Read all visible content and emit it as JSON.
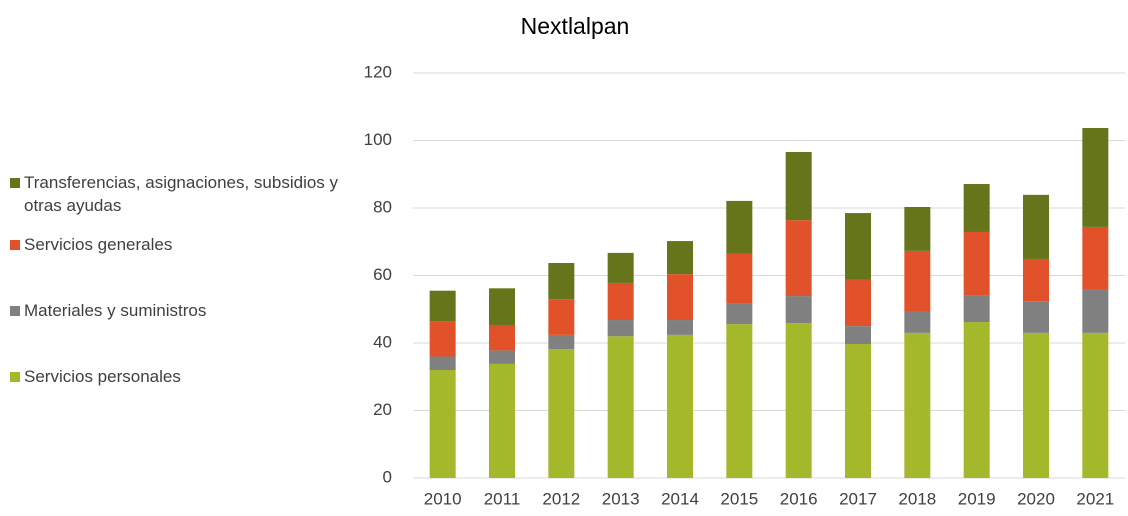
{
  "chart_data": {
    "type": "stacked_bar",
    "title": "Nextlalpan",
    "categories": [
      "2010",
      "2011",
      "2012",
      "2013",
      "2014",
      "2015",
      "2016",
      "2017",
      "2018",
      "2019",
      "2020",
      "2021"
    ],
    "series": [
      {
        "name": "Servicios personales",
        "color": "#a5b82b",
        "values": [
          32,
          33.8,
          38.2,
          42,
          42.4,
          45.6,
          45.9,
          39.7,
          43,
          46.2,
          43,
          43
        ]
      },
      {
        "name": "Materiales y suministros",
        "color": "#808080",
        "values": [
          4,
          4,
          4.2,
          4.8,
          4.4,
          6,
          8,
          5.3,
          6.2,
          8,
          9.4,
          13
        ]
      },
      {
        "name": "Servicios generales",
        "color": "#e2522a",
        "values": [
          10.5,
          7.4,
          10.6,
          11,
          13.6,
          14.8,
          22.5,
          13.7,
          18.1,
          18.7,
          12.5,
          18.4
        ]
      },
      {
        "name": "Transferencias, asignaciones, subsidios y otras ayudas",
        "color": "#66741b",
        "values": [
          9,
          11,
          10.7,
          8.9,
          9.8,
          15.7,
          20.2,
          19.8,
          13,
          14.2,
          19,
          29.3
        ]
      }
    ],
    "ylim": [
      0,
      120
    ],
    "yticks": [
      0,
      20,
      40,
      60,
      80,
      100,
      120
    ],
    "grid": true,
    "legend": "left"
  }
}
